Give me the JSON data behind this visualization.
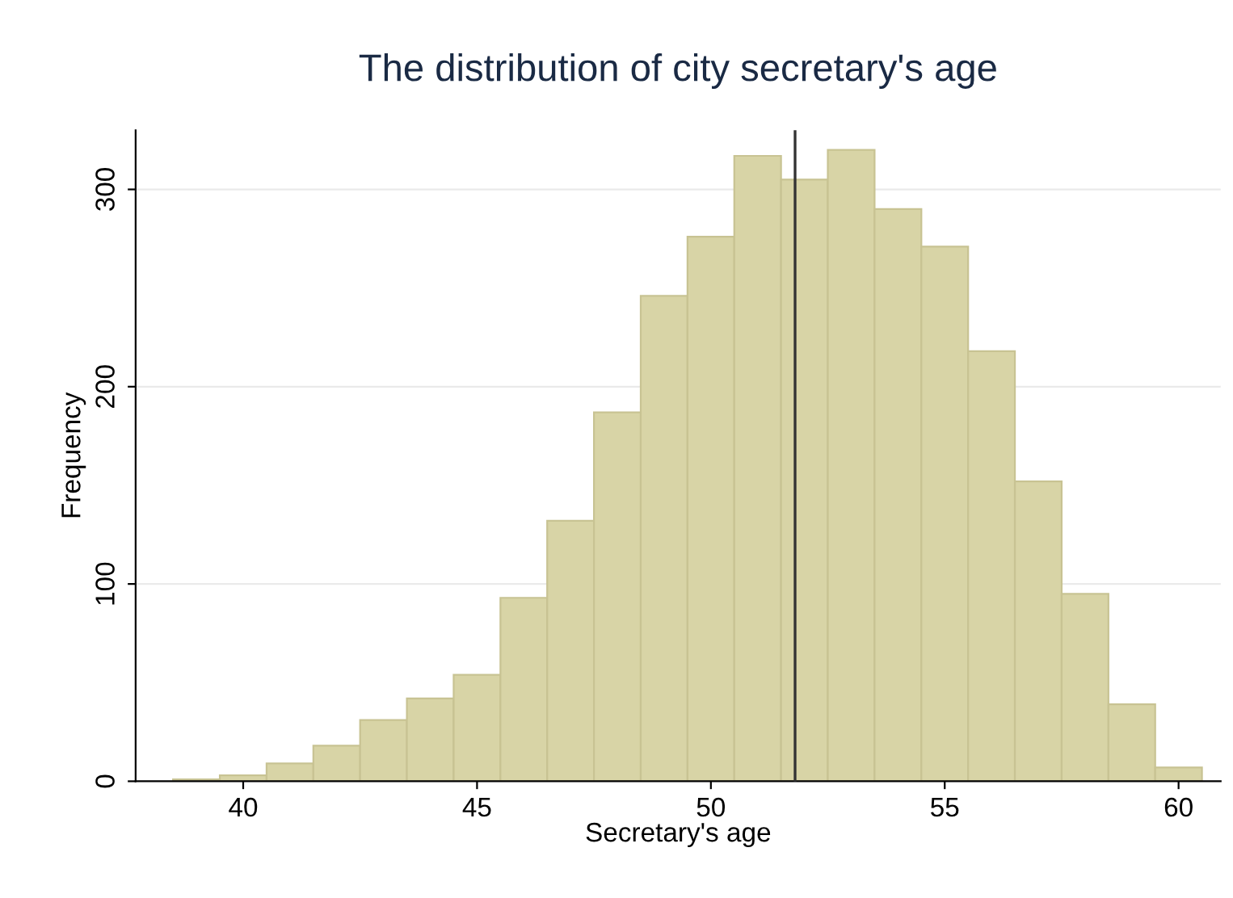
{
  "chart_data": {
    "type": "histogram",
    "title": "The distribution of city secretary's age",
    "xlabel": "Secretary's age",
    "ylabel": "Frequency",
    "bins": [
      38.5,
      39.5,
      40.5,
      41.5,
      42.5,
      43.5,
      44.5,
      45.5,
      46.5,
      47.5,
      48.5,
      49.5,
      50.5,
      51.5,
      52.5,
      53.5,
      54.5,
      55.5,
      56.5,
      57.5,
      58.5,
      59.5,
      60.5
    ],
    "values": [
      1,
      3,
      9,
      18,
      31,
      42,
      54,
      93,
      132,
      187,
      246,
      276,
      317,
      305,
      320,
      290,
      271,
      218,
      152,
      95,
      39,
      7
    ],
    "color": "#d8d4a6",
    "xlim": [
      37.7,
      60.9
    ],
    "ylim": [
      0,
      330
    ],
    "xticks": [
      40,
      45,
      50,
      55,
      60
    ],
    "yticks": [
      0,
      100,
      200,
      300
    ],
    "grid": "y",
    "ref_lines": [
      {
        "axis": "x",
        "value": 51.8,
        "color": "#333333"
      }
    ]
  }
}
